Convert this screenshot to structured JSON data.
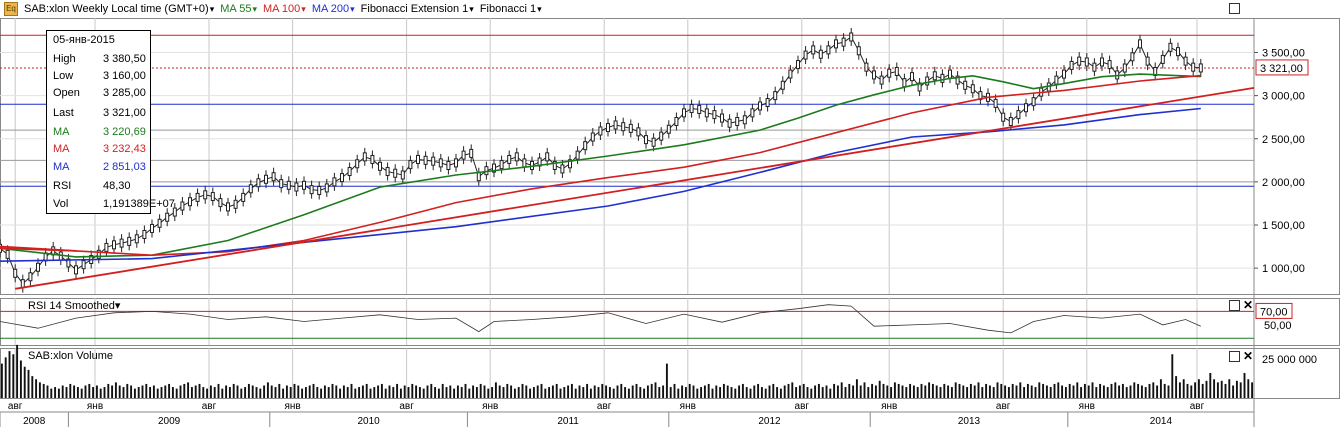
{
  "header": {
    "logo_text": "Eq",
    "symbol": "SAB:xlon Weekly Local time (GMT+0)",
    "ma55": "MA 55",
    "ma100": "MA 100",
    "ma200": "MA 200",
    "fib_ext": "Fibonacci Extension 1",
    "fib": "Fibonacci 1"
  },
  "info_box": {
    "date": "05-янв-2015",
    "rows": [
      {
        "k": "High",
        "v": "3 380,50",
        "color": "#000000"
      },
      {
        "k": "Low",
        "v": "3 160,00",
        "color": "#000000"
      },
      {
        "k": "Open",
        "v": "3 285,00",
        "color": "#000000"
      },
      {
        "k": "Last",
        "v": "3 321,00",
        "color": "#000000"
      },
      {
        "k": "MA",
        "v": "3 220,69",
        "color": "#1d7a1d"
      },
      {
        "k": "MA",
        "v": "3 232,43",
        "color": "#d21f1f"
      },
      {
        "k": "MA",
        "v": "2 851,03",
        "color": "#1f2fd0"
      },
      {
        "k": "RSI",
        "v": "48,30",
        "color": "#000000"
      },
      {
        "k": "Vol",
        "v": "1,191389E+07",
        "color": "#000000"
      }
    ]
  },
  "rsi_panel": {
    "title": "RSI 14 Smoothed",
    "ticks": [
      "70,00",
      "50,00"
    ],
    "level_70": 70,
    "level_30": 30
  },
  "volume_panel": {
    "title": "SAB:xlon Volume",
    "ticks": [
      "25 000 000"
    ]
  },
  "price_tags": {
    "last": "3 321,00"
  },
  "colors": {
    "green": "#1d7a1d",
    "red": "#d21f1f",
    "blue": "#1f2fd0",
    "grid": "#c8c8c8",
    "resistance": "#d21f1f",
    "support": "#1f2fd0"
  },
  "chart_data": {
    "type": "line",
    "price_axis": {
      "ylim": [
        700,
        3900
      ],
      "ticks": [
        "3 500,00",
        "3 000,00",
        "2 500,00",
        "2 000,00",
        "1 500,00",
        "1 000,00"
      ],
      "tick_values": [
        3500,
        3000,
        2500,
        2000,
        1500,
        1000
      ]
    },
    "time_axis": {
      "month_labels": [
        "авг",
        "янв",
        "авг",
        "янв",
        "авг",
        "янв",
        "авг",
        "янв",
        "авг",
        "янв",
        "авг",
        "янв",
        "авг"
      ],
      "month_weeks": [
        4,
        25,
        55,
        77,
        107,
        129,
        159,
        181,
        211,
        234,
        264,
        286,
        315
      ],
      "year_labels": [
        "2008",
        "2009",
        "2010",
        "2011",
        "2012",
        "2013",
        "2014"
      ],
      "year_weeks": [
        0,
        18,
        71,
        123,
        176,
        229,
        281
      ],
      "total_weeks": 330
    },
    "close": [
      [
        0,
        1230
      ],
      [
        2,
        1160
      ],
      [
        4,
        940
      ],
      [
        6,
        820
      ],
      [
        8,
        900
      ],
      [
        10,
        1010
      ],
      [
        12,
        1130
      ],
      [
        14,
        1200
      ],
      [
        16,
        1140
      ],
      [
        18,
        1060
      ],
      [
        20,
        980
      ],
      [
        22,
        1040
      ],
      [
        24,
        1100
      ],
      [
        26,
        1160
      ],
      [
        28,
        1240
      ],
      [
        30,
        1270
      ],
      [
        32,
        1290
      ],
      [
        34,
        1310
      ],
      [
        36,
        1340
      ],
      [
        38,
        1390
      ],
      [
        40,
        1460
      ],
      [
        42,
        1520
      ],
      [
        44,
        1590
      ],
      [
        46,
        1650
      ],
      [
        48,
        1720
      ],
      [
        50,
        1770
      ],
      [
        52,
        1820
      ],
      [
        54,
        1850
      ],
      [
        56,
        1830
      ],
      [
        58,
        1760
      ],
      [
        60,
        1710
      ],
      [
        62,
        1740
      ],
      [
        64,
        1820
      ],
      [
        66,
        1920
      ],
      [
        68,
        1990
      ],
      [
        70,
        2030
      ],
      [
        72,
        2060
      ],
      [
        74,
        1980
      ],
      [
        76,
        1960
      ],
      [
        78,
        1940
      ],
      [
        80,
        1960
      ],
      [
        82,
        1910
      ],
      [
        84,
        1900
      ],
      [
        86,
        1930
      ],
      [
        88,
        2000
      ],
      [
        90,
        2050
      ],
      [
        92,
        2120
      ],
      [
        94,
        2210
      ],
      [
        96,
        2290
      ],
      [
        98,
        2260
      ],
      [
        100,
        2180
      ],
      [
        102,
        2120
      ],
      [
        104,
        2100
      ],
      [
        106,
        2080
      ],
      [
        108,
        2200
      ],
      [
        110,
        2260
      ],
      [
        112,
        2250
      ],
      [
        114,
        2240
      ],
      [
        116,
        2220
      ],
      [
        118,
        2190
      ],
      [
        120,
        2220
      ],
      [
        122,
        2310
      ],
      [
        124,
        2330
      ],
      [
        126,
        2060
      ],
      [
        128,
        2130
      ],
      [
        130,
        2160
      ],
      [
        132,
        2200
      ],
      [
        134,
        2260
      ],
      [
        136,
        2290
      ],
      [
        138,
        2220
      ],
      [
        140,
        2190
      ],
      [
        142,
        2230
      ],
      [
        144,
        2290
      ],
      [
        146,
        2190
      ],
      [
        148,
        2150
      ],
      [
        150,
        2210
      ],
      [
        152,
        2310
      ],
      [
        154,
        2420
      ],
      [
        156,
        2520
      ],
      [
        158,
        2590
      ],
      [
        160,
        2630
      ],
      [
        162,
        2660
      ],
      [
        164,
        2640
      ],
      [
        166,
        2620
      ],
      [
        168,
        2580
      ],
      [
        170,
        2490
      ],
      [
        172,
        2460
      ],
      [
        174,
        2530
      ],
      [
        176,
        2610
      ],
      [
        178,
        2700
      ],
      [
        180,
        2800
      ],
      [
        182,
        2850
      ],
      [
        184,
        2840
      ],
      [
        186,
        2800
      ],
      [
        188,
        2780
      ],
      [
        190,
        2740
      ],
      [
        192,
        2680
      ],
      [
        194,
        2700
      ],
      [
        196,
        2720
      ],
      [
        198,
        2800
      ],
      [
        200,
        2880
      ],
      [
        202,
        2920
      ],
      [
        204,
        3000
      ],
      [
        206,
        3120
      ],
      [
        208,
        3250
      ],
      [
        210,
        3360
      ],
      [
        212,
        3470
      ],
      [
        214,
        3530
      ],
      [
        216,
        3480
      ],
      [
        218,
        3530
      ],
      [
        220,
        3600
      ],
      [
        222,
        3620
      ],
      [
        224,
        3680
      ],
      [
        226,
        3520
      ],
      [
        228,
        3330
      ],
      [
        230,
        3240
      ],
      [
        232,
        3180
      ],
      [
        234,
        3260
      ],
      [
        236,
        3280
      ],
      [
        238,
        3150
      ],
      [
        240,
        3220
      ],
      [
        242,
        3100
      ],
      [
        244,
        3170
      ],
      [
        246,
        3230
      ],
      [
        248,
        3200
      ],
      [
        250,
        3250
      ],
      [
        252,
        3180
      ],
      [
        254,
        3120
      ],
      [
        256,
        3080
      ],
      [
        258,
        3000
      ],
      [
        260,
        2980
      ],
      [
        262,
        2910
      ],
      [
        264,
        2750
      ],
      [
        266,
        2700
      ],
      [
        268,
        2780
      ],
      [
        270,
        2860
      ],
      [
        272,
        2930
      ],
      [
        274,
        3040
      ],
      [
        276,
        3100
      ],
      [
        278,
        3180
      ],
      [
        280,
        3250
      ],
      [
        282,
        3350
      ],
      [
        284,
        3400
      ],
      [
        286,
        3390
      ],
      [
        288,
        3330
      ],
      [
        290,
        3390
      ],
      [
        292,
        3360
      ],
      [
        294,
        3240
      ],
      [
        296,
        3320
      ],
      [
        298,
        3450
      ],
      [
        300,
        3600
      ],
      [
        302,
        3400
      ],
      [
        304,
        3280
      ],
      [
        306,
        3420
      ],
      [
        308,
        3560
      ],
      [
        310,
        3510
      ],
      [
        312,
        3400
      ],
      [
        314,
        3330
      ],
      [
        316,
        3321
      ]
    ],
    "series": [
      {
        "name": "MA 55",
        "color": "#1d7a1d",
        "points": [
          [
            0,
            1230
          ],
          [
            20,
            1130
          ],
          [
            40,
            1150
          ],
          [
            60,
            1320
          ],
          [
            80,
            1620
          ],
          [
            100,
            1940
          ],
          [
            120,
            2080
          ],
          [
            140,
            2180
          ],
          [
            160,
            2300
          ],
          [
            180,
            2430
          ],
          [
            200,
            2600
          ],
          [
            210,
            2740
          ],
          [
            220,
            2890
          ],
          [
            230,
            3010
          ],
          [
            240,
            3120
          ],
          [
            250,
            3200
          ],
          [
            256,
            3230
          ],
          [
            264,
            3160
          ],
          [
            272,
            3080
          ],
          [
            280,
            3140
          ],
          [
            290,
            3220
          ],
          [
            300,
            3250
          ],
          [
            316,
            3221
          ]
        ]
      },
      {
        "name": "MA 100",
        "color": "#d21f1f",
        "points": [
          [
            0,
            1230
          ],
          [
            20,
            1200
          ],
          [
            40,
            1150
          ],
          [
            60,
            1190
          ],
          [
            80,
            1320
          ],
          [
            100,
            1530
          ],
          [
            120,
            1760
          ],
          [
            140,
            1920
          ],
          [
            160,
            2050
          ],
          [
            180,
            2170
          ],
          [
            200,
            2340
          ],
          [
            220,
            2570
          ],
          [
            240,
            2800
          ],
          [
            260,
            2980
          ],
          [
            280,
            3060
          ],
          [
            300,
            3170
          ],
          [
            316,
            3232
          ]
        ]
      },
      {
        "name": "MA 200",
        "color": "#1f2fd0",
        "points": [
          [
            0,
            1080
          ],
          [
            40,
            1110
          ],
          [
            80,
            1300
          ],
          [
            120,
            1480
          ],
          [
            160,
            1720
          ],
          [
            180,
            1890
          ],
          [
            200,
            2110
          ],
          [
            220,
            2340
          ],
          [
            240,
            2520
          ],
          [
            260,
            2580
          ],
          [
            280,
            2660
          ],
          [
            300,
            2780
          ],
          [
            316,
            2851
          ]
        ]
      }
    ],
    "trendlines": [
      {
        "color": "#d21f1f",
        "from": [
          4,
          760
        ],
        "to": [
          330,
          3090
        ]
      },
      {
        "color": "#d21f1f",
        "from": [
          0,
          1250
        ],
        "to": [
          20,
          1200
        ]
      }
    ],
    "horizontal_lines": [
      {
        "value": 3700,
        "color": "#d21f1f",
        "style": "solid"
      },
      {
        "value": 3321,
        "color": "#d21f1f",
        "style": "dotted"
      },
      {
        "value": 2900,
        "color": "#1f2fd0",
        "style": "solid"
      },
      {
        "value": 2600,
        "color": "#999999",
        "style": "solid"
      },
      {
        "value": 2250,
        "color": "#999999",
        "style": "solid"
      },
      {
        "value": 2000,
        "color": "#999999",
        "style": "solid"
      },
      {
        "value": 1950,
        "color": "#1f2fd0",
        "style": "solid"
      }
    ],
    "rsi": [
      [
        0,
        55
      ],
      [
        10,
        45
      ],
      [
        20,
        60
      ],
      [
        30,
        68
      ],
      [
        40,
        70
      ],
      [
        50,
        66
      ],
      [
        60,
        58
      ],
      [
        70,
        62
      ],
      [
        80,
        55
      ],
      [
        90,
        60
      ],
      [
        100,
        65
      ],
      [
        110,
        58
      ],
      [
        120,
        60
      ],
      [
        126,
        40
      ],
      [
        130,
        55
      ],
      [
        140,
        58
      ],
      [
        150,
        62
      ],
      [
        160,
        68
      ],
      [
        170,
        52
      ],
      [
        180,
        66
      ],
      [
        190,
        54
      ],
      [
        200,
        68
      ],
      [
        210,
        74
      ],
      [
        218,
        80
      ],
      [
        224,
        78
      ],
      [
        230,
        48
      ],
      [
        240,
        50
      ],
      [
        250,
        52
      ],
      [
        260,
        42
      ],
      [
        266,
        38
      ],
      [
        272,
        55
      ],
      [
        280,
        64
      ],
      [
        290,
        60
      ],
      [
        300,
        66
      ],
      [
        306,
        50
      ],
      [
        312,
        58
      ],
      [
        316,
        48
      ]
    ],
    "volume_millions": [
      22,
      26,
      30,
      28,
      34,
      24,
      20,
      18,
      14,
      12,
      10,
      9,
      8,
      6,
      7,
      6,
      8,
      7,
      9,
      8,
      7,
      6,
      8,
      9,
      7,
      8,
      6,
      7,
      9,
      8,
      10,
      8,
      7,
      9,
      8,
      6,
      7,
      8,
      9,
      7,
      8,
      6,
      7,
      8,
      9,
      7,
      6,
      8,
      9,
      10,
      7,
      8,
      9,
      7,
      6,
      8,
      7,
      9,
      6,
      8,
      7,
      9,
      8,
      6,
      7,
      9,
      8,
      7,
      6,
      8,
      10,
      8,
      7,
      9,
      6,
      8,
      7,
      9,
      8,
      6,
      7,
      8,
      9,
      7,
      6,
      8,
      7,
      9,
      8,
      6,
      8,
      7,
      9,
      6,
      7,
      8,
      9,
      6,
      7,
      8,
      9,
      6,
      8,
      7,
      9,
      6,
      8,
      7,
      9,
      8,
      7,
      6,
      8,
      9,
      7,
      6,
      9,
      7,
      8,
      6,
      8,
      7,
      9,
      6,
      8,
      7,
      9,
      8,
      6,
      7,
      10,
      8,
      7,
      9,
      8,
      6,
      7,
      9,
      8,
      6,
      7,
      8,
      9,
      6,
      7,
      8,
      9,
      6,
      7,
      8,
      9,
      6,
      8,
      7,
      9,
      6,
      8,
      7,
      9,
      8,
      7,
      6,
      8,
      9,
      7,
      6,
      8,
      9,
      7,
      6,
      8,
      9,
      10,
      7,
      8,
      22,
      7,
      9,
      6,
      8,
      7,
      9,
      8,
      6,
      7,
      8,
      9,
      6,
      8,
      7,
      9,
      8,
      7,
      6,
      8,
      9,
      7,
      6,
      8,
      9,
      7,
      6,
      8,
      9,
      7,
      6,
      8,
      9,
      10,
      7,
      8,
      9,
      7,
      6,
      8,
      9,
      7,
      8,
      6,
      9,
      8,
      10,
      7,
      9,
      8,
      12,
      8,
      10,
      7,
      9,
      8,
      11,
      9,
      8,
      7,
      10,
      9,
      8,
      7,
      9,
      8,
      7,
      9,
      8,
      10,
      9,
      8,
      7,
      9,
      8,
      7,
      10,
      9,
      8,
      7,
      9,
      8,
      10,
      7,
      9,
      8,
      7,
      10,
      9,
      8,
      7,
      9,
      8,
      10,
      7,
      9,
      8,
      7,
      10,
      9,
      8,
      7,
      9,
      10,
      8,
      7,
      9,
      8,
      10,
      7,
      9,
      8,
      10,
      7,
      9,
      8,
      7,
      9,
      10,
      8,
      9,
      7,
      8,
      10,
      9,
      8,
      7,
      9,
      10,
      8,
      12,
      9,
      8,
      28,
      14,
      10,
      12,
      9,
      8,
      10,
      12,
      9,
      11,
      16,
      12,
      10,
      11,
      9,
      12,
      8,
      11,
      10,
      16,
      12,
      10
    ]
  }
}
